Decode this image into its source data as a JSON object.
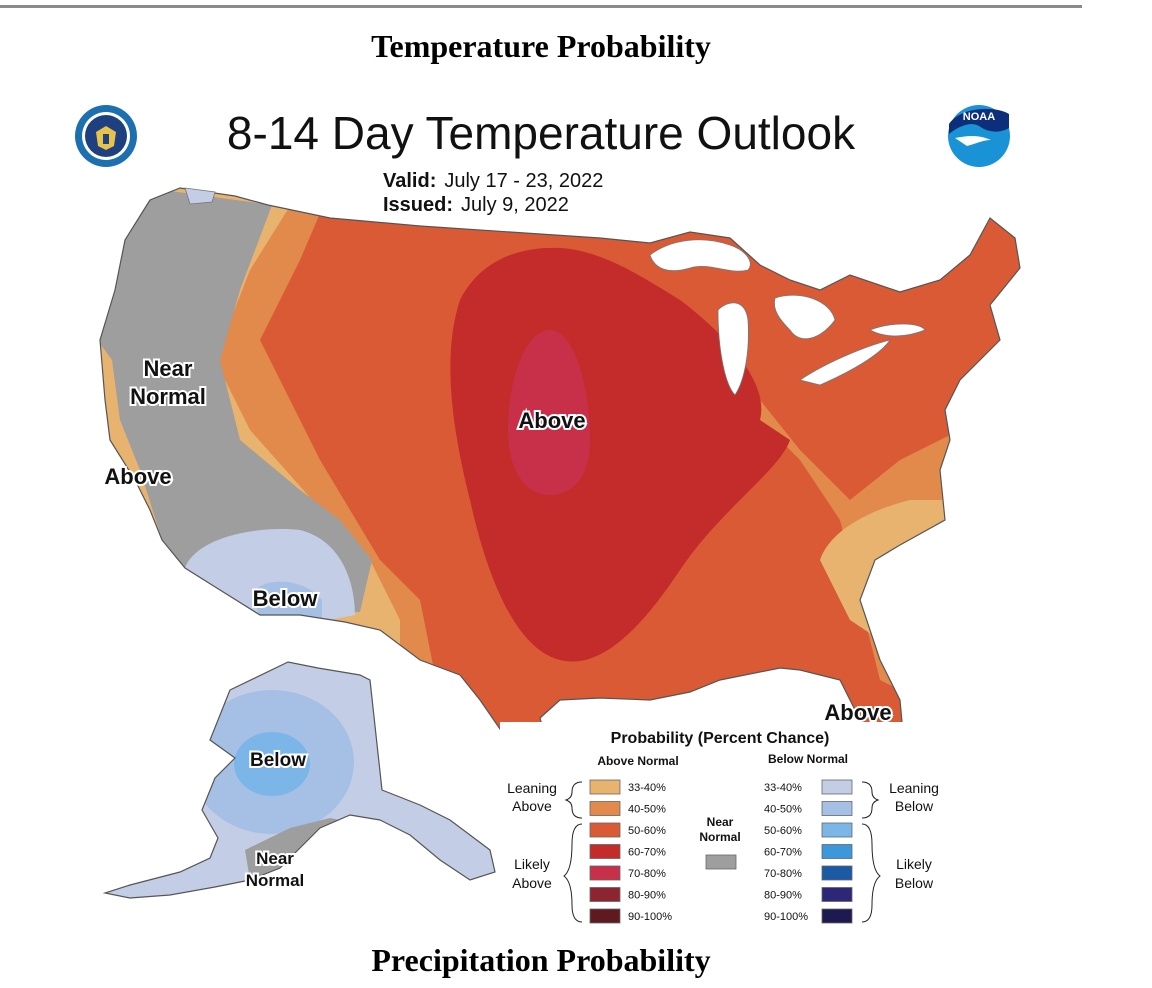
{
  "headings": {
    "top": "Temperature Probability",
    "bottom": "Precipitation Probability"
  },
  "map": {
    "title": "8-14 Day Temperature Outlook",
    "valid_label": "Valid:",
    "valid_value": "July 17 - 23, 2022",
    "issued_label": "Issued:",
    "issued_value": "July 9, 2022",
    "logos": [
      "department-of-commerce-seal",
      "noaa-logo"
    ],
    "logo_text": {
      "noaa": "NOAA"
    },
    "region_labels": {
      "west_near_normal": [
        "Near",
        "Normal"
      ],
      "west_coast_above": "Above",
      "central_above": "Above",
      "southwest_below": "Below",
      "florida_above": "Above",
      "alaska_below": "Below",
      "alaska_near_normal": [
        "Near",
        "Normal"
      ]
    },
    "colors": {
      "near_normal": "#9e9e9e",
      "above_33_40": "#e8b26f",
      "above_40_50": "#e28a4c",
      "above_50_60": "#d95a35",
      "above_60_70": "#c42b2b",
      "above_70_80": "#c8304a",
      "above_80_90": "#8e2430",
      "above_90_100": "#5e1a1f",
      "below_33_40": "#c3cde6",
      "below_40_50": "#a5c0e4",
      "below_50_60": "#7cb6e8",
      "below_60_70": "#3c97db",
      "below_70_80": "#1c5aa6",
      "below_80_90": "#2c2777",
      "below_90_100": "#1d1a4f",
      "water": "#ffffff"
    }
  },
  "legend": {
    "title": "Probability (Percent Chance)",
    "above_header": "Above Normal",
    "below_header": "Below Normal",
    "near_header": [
      "Near",
      "Normal"
    ],
    "above_items": [
      {
        "label": "33-40%",
        "color": "#e8b26f"
      },
      {
        "label": "40-50%",
        "color": "#e28a4c"
      },
      {
        "label": "50-60%",
        "color": "#d95a35"
      },
      {
        "label": "60-70%",
        "color": "#c42b2b"
      },
      {
        "label": "70-80%",
        "color": "#c8304a"
      },
      {
        "label": "80-90%",
        "color": "#8e2430"
      },
      {
        "label": "90-100%",
        "color": "#5e1a1f"
      }
    ],
    "below_items": [
      {
        "label": "33-40%",
        "color": "#c3cde6"
      },
      {
        "label": "40-50%",
        "color": "#a5c0e4"
      },
      {
        "label": "50-60%",
        "color": "#7cb6e8"
      },
      {
        "label": "60-70%",
        "color": "#3c97db"
      },
      {
        "label": "70-80%",
        "color": "#1c5aa6"
      },
      {
        "label": "80-90%",
        "color": "#2c2777"
      },
      {
        "label": "90-100%",
        "color": "#1d1a4f"
      }
    ],
    "near_color": "#9e9e9e",
    "leaning_above": [
      "Leaning",
      "Above"
    ],
    "likely_above": [
      "Likely",
      "Above"
    ],
    "leaning_below": [
      "Leaning",
      "Below"
    ],
    "likely_below": [
      "Likely",
      "Below"
    ]
  }
}
